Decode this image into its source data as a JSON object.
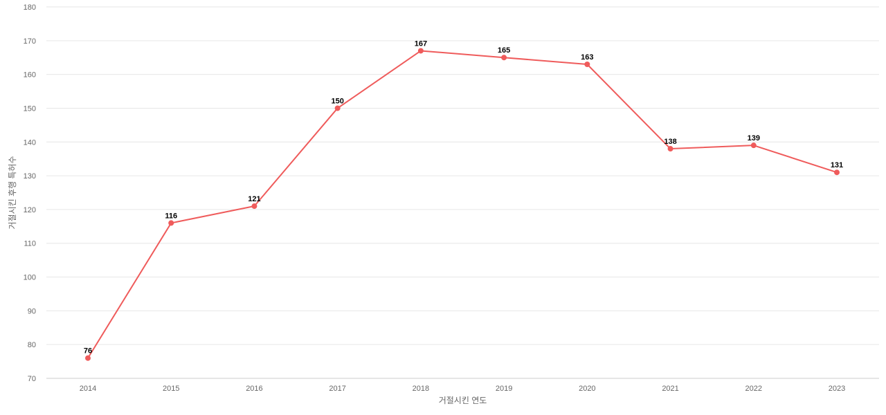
{
  "chart_data": {
    "type": "line",
    "title": "",
    "xlabel": "거절시킨 연도",
    "ylabel": "거절시킨 후행 특허수",
    "categories": [
      "2014",
      "2015",
      "2016",
      "2017",
      "2018",
      "2019",
      "2020",
      "2021",
      "2022",
      "2023"
    ],
    "series": [
      {
        "values": [
          76,
          116,
          121,
          150,
          167,
          165,
          163,
          138,
          139,
          131
        ]
      }
    ],
    "ylim": [
      70,
      180
    ],
    "yticks": [
      70,
      80,
      90,
      100,
      110,
      120,
      130,
      140,
      150,
      160,
      170,
      180
    ],
    "grid": true,
    "legend": "none",
    "color": "#ef5b5b"
  }
}
